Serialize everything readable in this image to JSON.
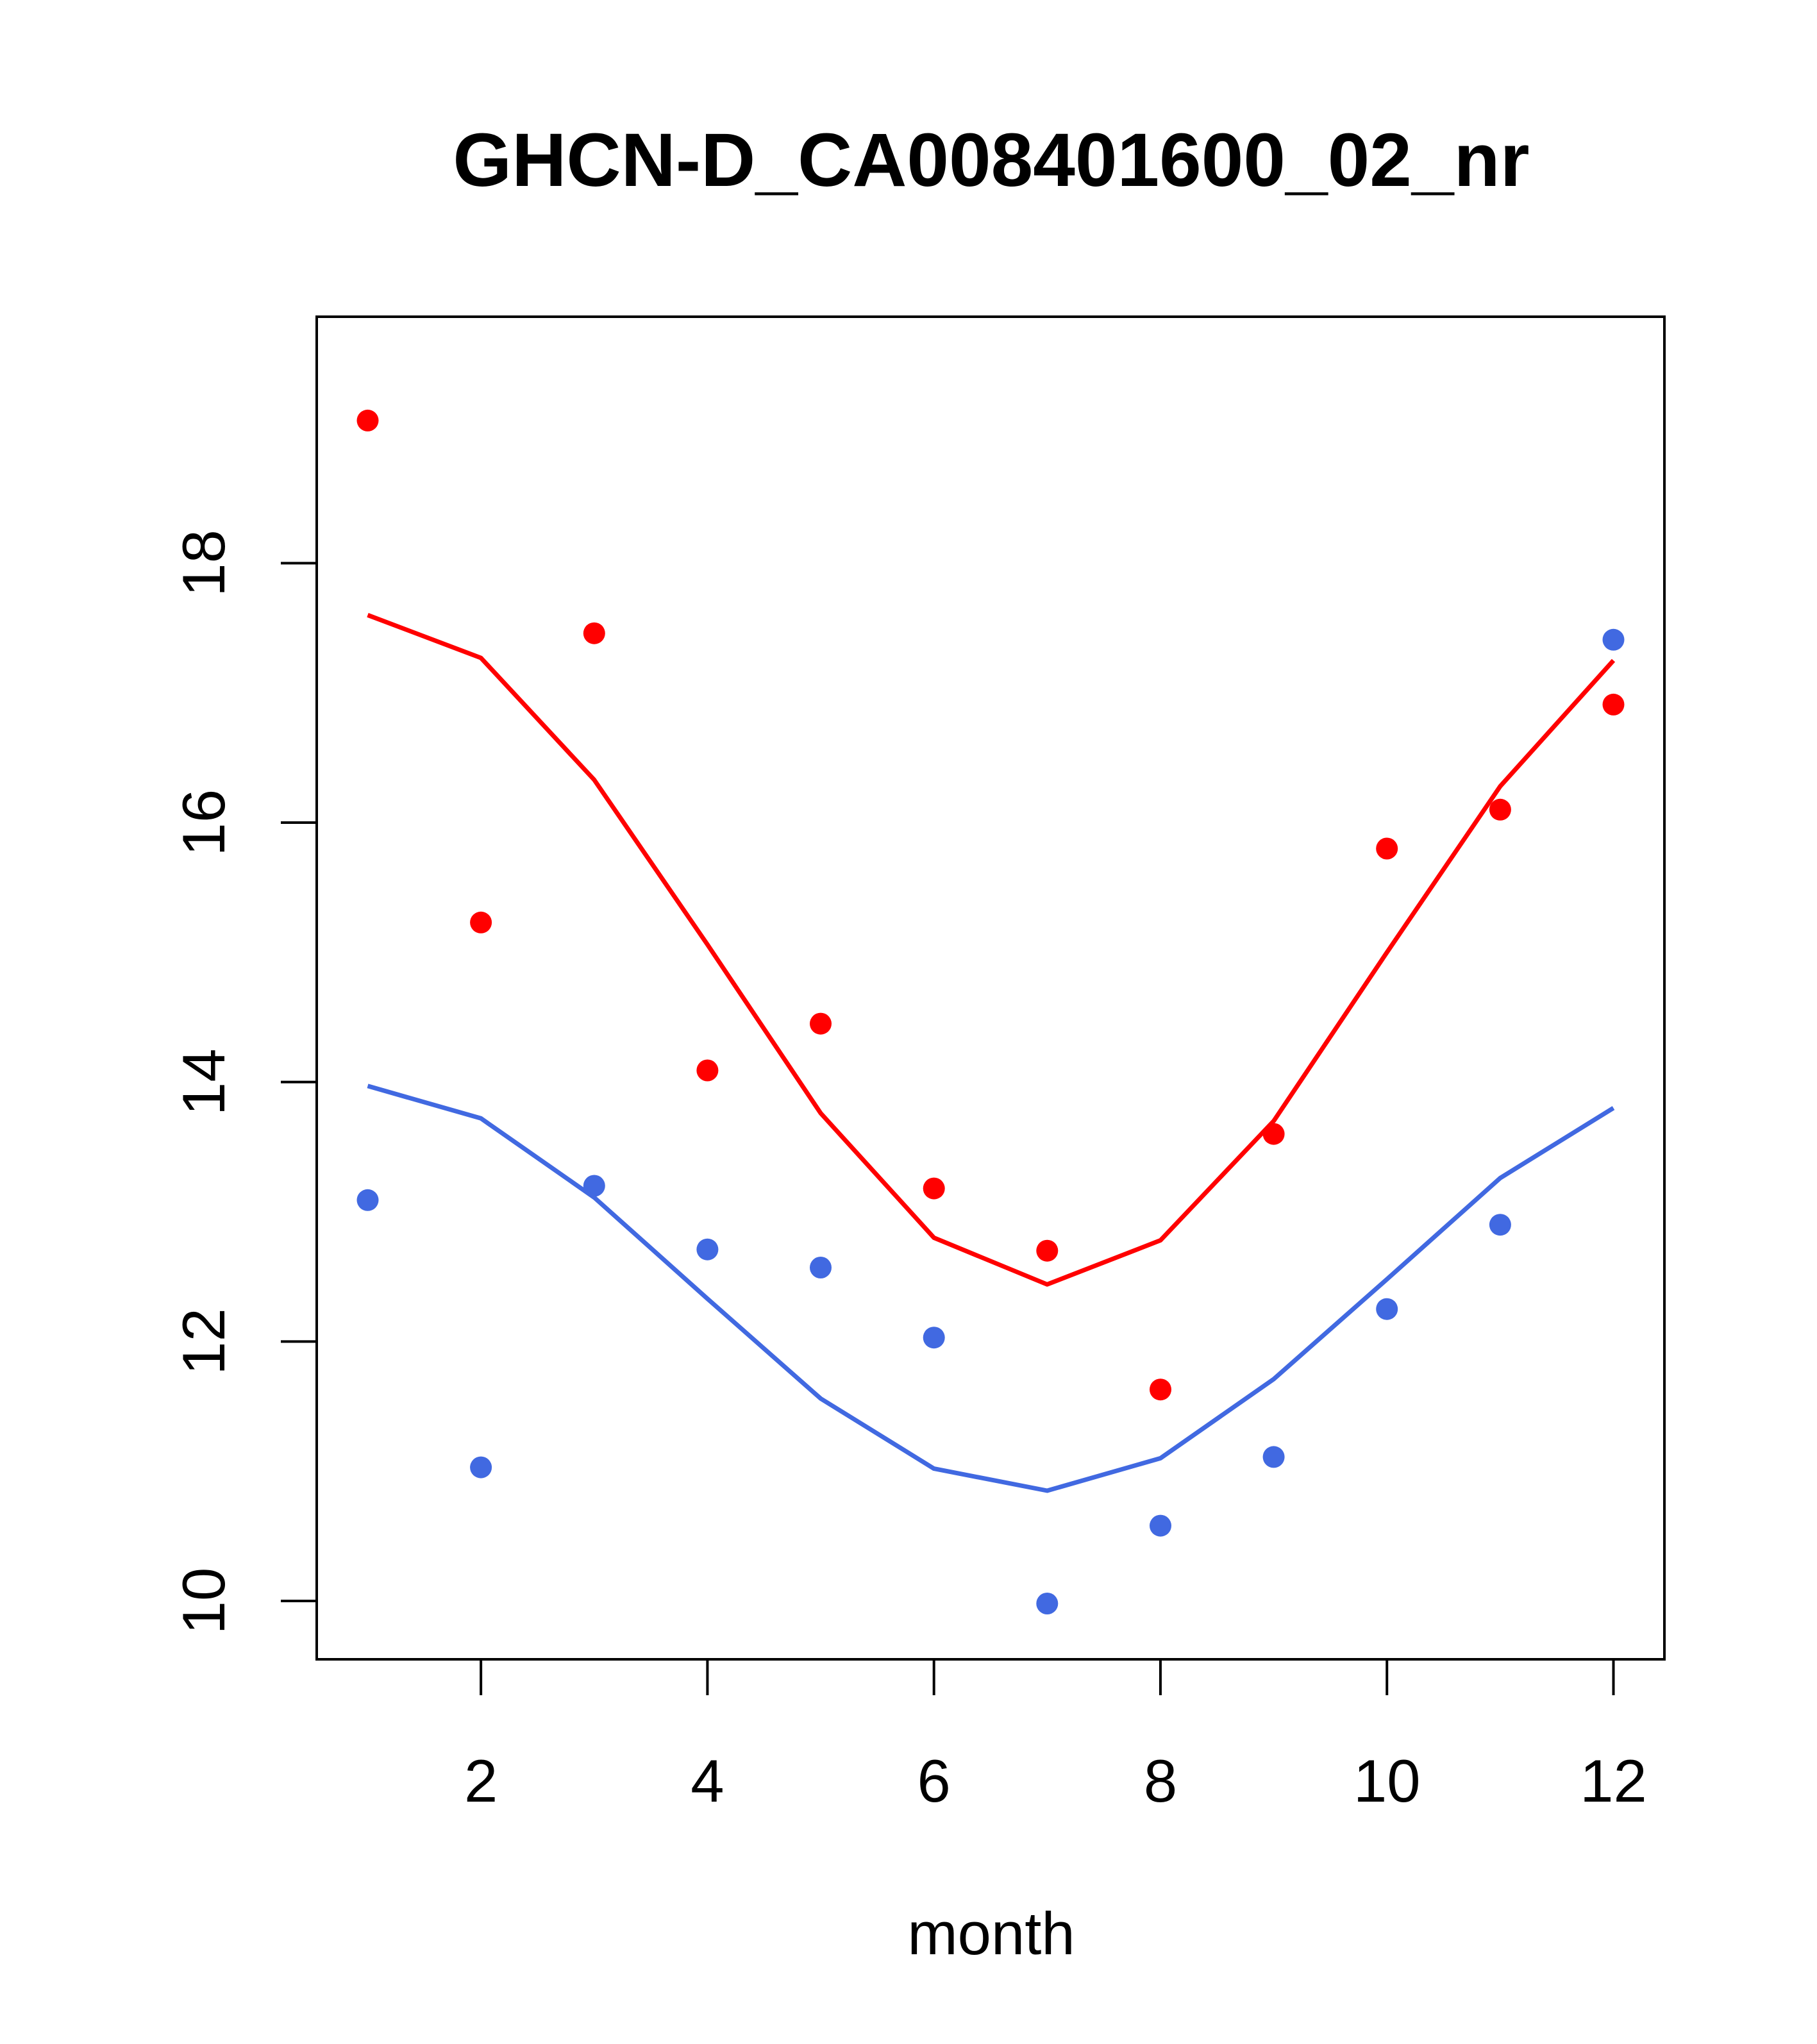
{
  "chart_data": {
    "type": "scatter",
    "title": "GHCN-D_CA008401600_02_nr",
    "xlabel": "month",
    "ylabel": "",
    "xlim": [
      0.55,
      12.45
    ],
    "ylim": [
      9.55,
      19.9
    ],
    "x_ticks": [
      2,
      4,
      6,
      8,
      10,
      12
    ],
    "y_ticks": [
      10,
      12,
      14,
      16,
      18
    ],
    "x_tick_labels": [
      "2",
      "4",
      "6",
      "8",
      "10",
      "12"
    ],
    "y_tick_labels": [
      "10",
      "12",
      "14",
      "16",
      "18"
    ],
    "grid": false,
    "legend": "none",
    "series": [
      {
        "color": "#ff0000",
        "kind": "points",
        "x": [
          1,
          2,
          3,
          4,
          5,
          6,
          7,
          8,
          9,
          10,
          11,
          12
        ],
        "y": [
          19.1,
          15.23,
          17.46,
          14.09,
          14.45,
          13.18,
          12.7,
          11.63,
          13.6,
          15.8,
          16.1,
          16.91
        ]
      },
      {
        "color": "#ff0000",
        "kind": "line",
        "x": [
          1,
          2,
          3,
          4,
          5,
          6,
          7,
          8,
          9,
          10,
          11,
          12
        ],
        "y": [
          17.6,
          17.27,
          16.33,
          15.06,
          13.76,
          12.8,
          12.44,
          12.78,
          13.7,
          15.0,
          16.28,
          17.25
        ]
      },
      {
        "color": "#4169e1",
        "kind": "points",
        "x": [
          1,
          2,
          3,
          4,
          5,
          6,
          7,
          8,
          9,
          10,
          11,
          12
        ],
        "y": [
          13.09,
          11.03,
          13.2,
          12.71,
          12.57,
          12.03,
          9.98,
          10.58,
          11.11,
          12.25,
          12.9,
          17.41
        ]
      },
      {
        "color": "#4169e1",
        "kind": "line",
        "x": [
          1,
          2,
          3,
          4,
          5,
          6,
          7,
          8,
          9,
          10,
          11,
          12
        ],
        "y": [
          13.97,
          13.72,
          13.11,
          12.33,
          11.56,
          11.02,
          10.85,
          11.1,
          11.71,
          12.48,
          13.26,
          13.8
        ]
      }
    ]
  }
}
